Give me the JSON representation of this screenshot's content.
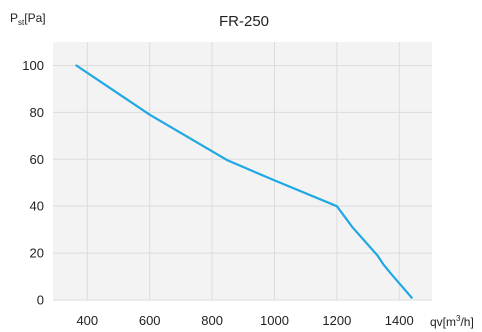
{
  "chart_data": {
    "type": "line",
    "title": "FR-250",
    "ylabel": {
      "main": "P",
      "sub": "st",
      "unit": "[Pa]"
    },
    "xlabel": {
      "main": "qv[m",
      "sup": "3",
      "end": "/h]"
    },
    "xlim": [
      290,
      1505
    ],
    "ylim": [
      0,
      110
    ],
    "grid": true,
    "xticks": [
      {
        "value": 400,
        "label": "400"
      },
      {
        "value": 600,
        "label": "600"
      },
      {
        "value": 800,
        "label": "800"
      },
      {
        "value": 1000,
        "label": "1000"
      },
      {
        "value": 1200,
        "label": "1200"
      },
      {
        "value": 1400,
        "label": "1400"
      }
    ],
    "yticks": [
      {
        "value": 0,
        "label": "0"
      },
      {
        "value": 20,
        "label": "20"
      },
      {
        "value": 40,
        "label": "40"
      },
      {
        "value": 60,
        "label": "60"
      },
      {
        "value": 80,
        "label": "80"
      },
      {
        "value": 100,
        "label": "100"
      }
    ],
    "series": [
      {
        "color": "#1fa8e4",
        "points": [
          [
            365,
            100
          ],
          [
            600,
            79
          ],
          [
            850,
            59.5
          ],
          [
            1000,
            51
          ],
          [
            1200,
            40
          ],
          [
            1250,
            31
          ],
          [
            1330,
            19
          ],
          [
            1350,
            15
          ],
          [
            1375,
            11
          ],
          [
            1440,
            1
          ]
        ]
      }
    ]
  }
}
